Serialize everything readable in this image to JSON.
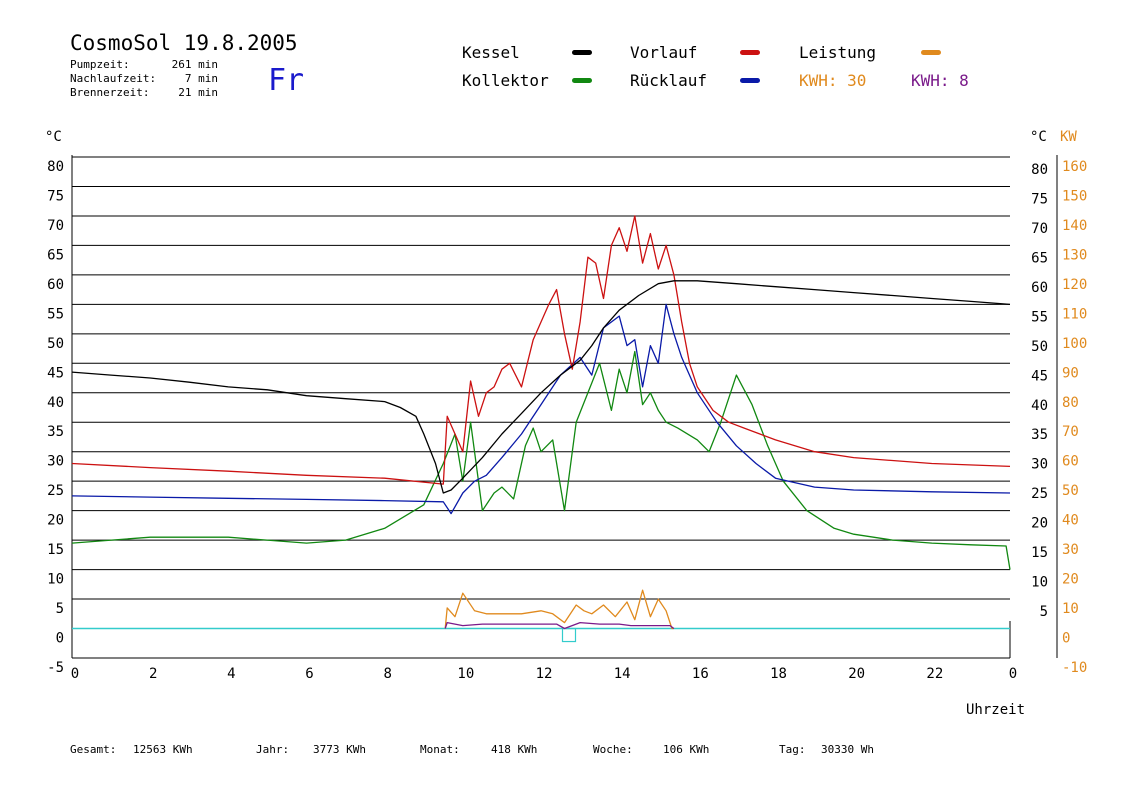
{
  "header": {
    "title": "CosmoSol 19.8.2005",
    "stats": [
      {
        "label": "Pumpzeit:",
        "value": "261 min"
      },
      {
        "label": "Nachlaufzeit:",
        "value": "7 min"
      },
      {
        "label": "Brennerzeit:",
        "value": "21 min"
      }
    ],
    "day": "Fr"
  },
  "legend": {
    "kessel": "Kessel",
    "vorlauf": "Vorlauf",
    "leistung": "Leistung",
    "kollektor": "Kollektor",
    "ruecklauf": "Rücklauf",
    "kwh_solar": "KWH: 30",
    "kwh_burner": "KWH: 8"
  },
  "colors": {
    "kessel": "#000000",
    "vorlauf": "#cc1111",
    "ruecklauf": "#0a1aa8",
    "kollektor": "#118811",
    "leistung": "#e08a1e",
    "burner": "#7a1a8a",
    "baseline": "#33cccc",
    "day": "#1a1acc"
  },
  "footer": [
    {
      "label": "Gesamt:",
      "value": "12563 KWh"
    },
    {
      "label": "Jahr:",
      "value": "3773 KWh"
    },
    {
      "label": "Monat:",
      "value": "418 KWh"
    },
    {
      "label": "Woche:",
      "value": "106 KWh"
    },
    {
      "label": "Tag:",
      "value": "30330 Wh"
    }
  ],
  "chart_data": {
    "type": "line",
    "xlabel": "Uhrzeit",
    "xlim": [
      0,
      24
    ],
    "x_ticks": [
      "0",
      "2",
      "4",
      "6",
      "8",
      "10",
      "12",
      "14",
      "16",
      "18",
      "20",
      "22",
      "0"
    ],
    "ylabel_left": "°C",
    "ylabel_right": "°C",
    "ylabel_power": "KW",
    "ylim": [
      -5,
      80
    ],
    "y_ticks_left": [
      "80",
      "75",
      "70",
      "65",
      "60",
      "55",
      "50",
      "45",
      "40",
      "35",
      "30",
      "25",
      "20",
      "15",
      "10",
      "5",
      "0",
      "-5"
    ],
    "y_ticks_right": [
      "80",
      "75",
      "70",
      "65",
      "60",
      "55",
      "50",
      "45",
      "40",
      "35",
      "30",
      "25",
      "20",
      "15",
      "10",
      "5"
    ],
    "y_ticks_power": [
      "160",
      "150",
      "140",
      "130",
      "120",
      "110",
      "100",
      "90",
      "80",
      "70",
      "60",
      "50",
      "40",
      "30",
      "20",
      "10",
      "0",
      "-10"
    ],
    "grid": true,
    "series": [
      {
        "name": "Kessel",
        "x": [
          0,
          1,
          2,
          3,
          4,
          5,
          6,
          7,
          8,
          8.4,
          8.8,
          9.0,
          9.3,
          9.5,
          9.7,
          10.0,
          10.5,
          11.0,
          11.5,
          12.0,
          12.5,
          13.0,
          13.3,
          13.6,
          14.0,
          14.5,
          15.0,
          15.4,
          16,
          17,
          18,
          19,
          20,
          21,
          22,
          23,
          24
        ],
        "values": [
          43.5,
          43,
          42.5,
          41.8,
          41,
          40.5,
          39.5,
          39,
          38.5,
          37.5,
          36,
          33,
          28,
          23,
          23.5,
          25.5,
          29,
          33,
          36.5,
          40,
          43,
          45.5,
          48,
          51,
          54,
          56.5,
          58.5,
          59,
          59,
          58.5,
          58,
          57.5,
          57,
          56.5,
          56,
          55.5,
          55
        ]
      },
      {
        "name": "Vorlauf",
        "x": [
          0,
          2,
          4,
          6,
          8,
          9.5,
          9.6,
          9.8,
          10.0,
          10.2,
          10.4,
          10.6,
          10.8,
          11.0,
          11.2,
          11.5,
          11.8,
          12.0,
          12.2,
          12.4,
          12.6,
          12.8,
          13.0,
          13.2,
          13.4,
          13.6,
          13.8,
          14.0,
          14.2,
          14.4,
          14.6,
          14.8,
          15.0,
          15.2,
          15.4,
          15.6,
          15.8,
          16.0,
          16.4,
          16.8,
          17.2,
          17.6,
          18,
          19,
          20,
          22,
          24
        ],
        "values": [
          28,
          27.3,
          26.7,
          26,
          25.5,
          24.5,
          36,
          33,
          30,
          42,
          36,
          40,
          41,
          44,
          45,
          41,
          49,
          52,
          55,
          57.5,
          50,
          44,
          52,
          63,
          62,
          56,
          65,
          68,
          64,
          70,
          62,
          67,
          61,
          65,
          60,
          52,
          45,
          41,
          37,
          35,
          34,
          33,
          32,
          30,
          29,
          28,
          27.5
        ]
      },
      {
        "name": "Rücklauf",
        "x": [
          0,
          2,
          4,
          6,
          8,
          9.5,
          9.7,
          10.0,
          10.3,
          10.6,
          11.0,
          11.5,
          12.0,
          12.5,
          13.0,
          13.3,
          13.6,
          14.0,
          14.2,
          14.4,
          14.6,
          14.8,
          15.0,
          15.2,
          15.4,
          15.6,
          16.0,
          16.5,
          17.0,
          17.5,
          18,
          19,
          20,
          22,
          24
        ],
        "values": [
          22.5,
          22.3,
          22.1,
          21.9,
          21.7,
          21.5,
          19.5,
          23,
          25,
          26,
          29,
          33,
          38,
          43,
          46,
          43,
          51,
          53,
          48,
          49,
          41,
          48,
          45,
          55,
          50,
          46,
          40,
          35,
          31,
          28,
          25.5,
          24,
          23.5,
          23.2,
          23
        ]
      },
      {
        "name": "Kollektor",
        "x": [
          0,
          2,
          4,
          6,
          7,
          8,
          9,
          9.5,
          9.8,
          10.0,
          10.2,
          10.5,
          10.8,
          11.0,
          11.3,
          11.6,
          11.8,
          12.0,
          12.3,
          12.6,
          12.9,
          13.2,
          13.5,
          13.8,
          14.0,
          14.2,
          14.4,
          14.6,
          14.8,
          15.0,
          15.2,
          15.5,
          16.0,
          16.3,
          16.6,
          17.0,
          17.4,
          17.8,
          18.2,
          18.8,
          19.5,
          20,
          21,
          22,
          23,
          23.9,
          24
        ],
        "values": [
          14.5,
          15.5,
          15.5,
          14.5,
          15,
          17,
          21,
          28,
          33,
          25,
          35,
          20,
          23,
          24,
          22,
          31,
          34,
          30,
          32,
          20,
          35,
          40,
          45,
          37,
          44,
          40,
          47,
          38,
          40,
          37,
          35,
          34,
          32,
          30,
          35,
          43,
          38,
          31,
          25,
          20,
          17,
          16,
          15,
          14.5,
          14.2,
          14,
          10
        ]
      },
      {
        "name": "Leistung",
        "unit": "KW",
        "x": [
          0,
          9.55,
          9.6,
          9.8,
          10.0,
          10.3,
          10.6,
          11.0,
          11.5,
          12.0,
          12.3,
          12.6,
          12.9,
          13.1,
          13.3,
          13.6,
          13.9,
          14.2,
          14.4,
          14.6,
          14.8,
          15.0,
          15.2,
          15.35,
          15.4,
          24
        ],
        "values": [
          0,
          0,
          7,
          4,
          12,
          6,
          5,
          5,
          5,
          6,
          5,
          2,
          8,
          6,
          5,
          8,
          4,
          9,
          3,
          13,
          4,
          10,
          6,
          0,
          0,
          0
        ]
      },
      {
        "name": "Brenner",
        "unit": "KW",
        "x": [
          0,
          9.55,
          9.6,
          10.0,
          10.5,
          11.0,
          11.5,
          12.0,
          12.4,
          12.6,
          13.0,
          13.5,
          14.0,
          14.3,
          14.5,
          15.0,
          15.3,
          15.4,
          24
        ],
        "values": [
          0,
          0,
          2,
          1,
          1.5,
          1.5,
          1.5,
          1.5,
          1.5,
          0,
          2,
          1.5,
          1.5,
          1,
          1,
          1,
          1,
          0,
          0
        ]
      }
    ]
  }
}
